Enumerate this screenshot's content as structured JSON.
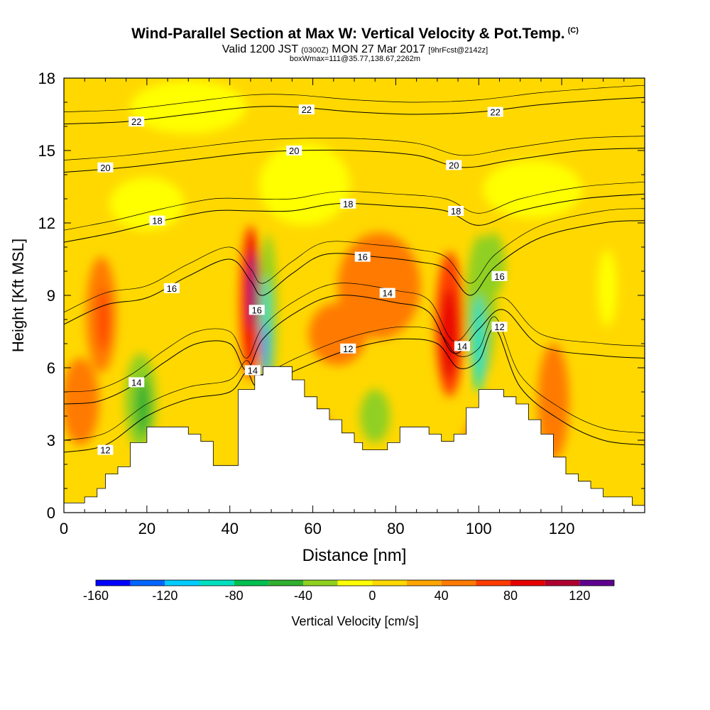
{
  "header": {
    "title": "Wind-Parallel Section at Max W: Vertical Velocity & Pot.Temp.",
    "copyright": "(C)",
    "valid_prefix": "Valid 1200 JST",
    "valid_utc": "(0300Z)",
    "valid_date": "MON 27 Mar 2017",
    "forecast": "[9hrFcst@2142z]",
    "box_info": "boxWmax=111@35.77,138.67,2262m"
  },
  "chart_data": {
    "type": "heatmap",
    "title": "Wind-Parallel Section at Max W: Vertical Velocity & Pot.Temp.",
    "xlabel": "Distance [nm]",
    "ylabel": "Height [Kft MSL]",
    "xlim": [
      0,
      140
    ],
    "ylim": [
      0,
      18
    ],
    "xticks": [
      0,
      20,
      40,
      60,
      80,
      100,
      120
    ],
    "yticks": [
      0,
      3,
      6,
      9,
      12,
      15,
      18
    ],
    "colorbar": {
      "label": "Vertical Velocity [cm/s]",
      "ticks": [
        -160,
        -120,
        -80,
        -40,
        0,
        40,
        80,
        120
      ],
      "levels": [
        -160,
        -140,
        -120,
        -100,
        -80,
        -60,
        -40,
        -20,
        0,
        20,
        40,
        60,
        80,
        100,
        120,
        140
      ],
      "colors": [
        "#0000ff",
        "#0066ff",
        "#00ccff",
        "#00e0c0",
        "#00c050",
        "#30b030",
        "#90d020",
        "#ffff00",
        "#ffd800",
        "#ffa500",
        "#ff7a00",
        "#ff3c00",
        "#e80000",
        "#b00030",
        "#600090"
      ]
    },
    "terrain": [
      [
        0,
        0.4
      ],
      [
        5,
        0.4
      ],
      [
        5,
        0.65
      ],
      [
        8,
        0.65
      ],
      [
        8,
        1.0
      ],
      [
        10,
        1.0
      ],
      [
        10,
        1.6
      ],
      [
        13,
        1.6
      ],
      [
        13,
        1.9
      ],
      [
        16,
        1.9
      ],
      [
        16,
        2.9
      ],
      [
        20,
        2.9
      ],
      [
        20,
        3.55
      ],
      [
        30,
        3.55
      ],
      [
        30,
        3.25
      ],
      [
        33,
        3.25
      ],
      [
        33,
        2.95
      ],
      [
        36,
        2.95
      ],
      [
        36,
        1.95
      ],
      [
        42,
        1.95
      ],
      [
        42,
        5.1
      ],
      [
        46,
        5.1
      ],
      [
        46,
        5.7
      ],
      [
        48,
        5.7
      ],
      [
        48,
        6.05
      ],
      [
        55,
        6.05
      ],
      [
        55,
        5.5
      ],
      [
        58,
        5.5
      ],
      [
        58,
        4.8
      ],
      [
        61,
        4.8
      ],
      [
        61,
        4.3
      ],
      [
        64,
        4.3
      ],
      [
        64,
        3.85
      ],
      [
        67,
        3.85
      ],
      [
        67,
        3.3
      ],
      [
        70,
        3.3
      ],
      [
        70,
        2.9
      ],
      [
        72,
        2.9
      ],
      [
        72,
        2.6
      ],
      [
        78,
        2.6
      ],
      [
        78,
        2.9
      ],
      [
        81,
        2.9
      ],
      [
        81,
        3.55
      ],
      [
        88,
        3.55
      ],
      [
        88,
        3.25
      ],
      [
        91,
        3.25
      ],
      [
        91,
        2.95
      ],
      [
        94,
        2.95
      ],
      [
        94,
        3.25
      ],
      [
        97,
        3.25
      ],
      [
        97,
        4.35
      ],
      [
        100,
        4.35
      ],
      [
        100,
        5.1
      ],
      [
        106,
        5.1
      ],
      [
        106,
        4.8
      ],
      [
        109,
        4.8
      ],
      [
        109,
        4.5
      ],
      [
        112,
        4.5
      ],
      [
        112,
        3.85
      ],
      [
        115,
        3.85
      ],
      [
        115,
        3.25
      ],
      [
        118,
        3.25
      ],
      [
        118,
        2.3
      ],
      [
        121,
        2.3
      ],
      [
        121,
        1.6
      ],
      [
        124,
        1.6
      ],
      [
        124,
        1.3
      ],
      [
        127,
        1.3
      ],
      [
        127,
        1.0
      ],
      [
        130,
        1.0
      ],
      [
        130,
        0.65
      ],
      [
        137,
        0.65
      ],
      [
        137,
        0.3
      ],
      [
        140,
        0.3
      ]
    ],
    "vv_blobs": [
      {
        "x": 45,
        "y": 8.7,
        "rx": 2.6,
        "ry": 3.2,
        "value": 60
      },
      {
        "x": 45.4,
        "y": 8.9,
        "rx": 1.5,
        "ry": 2.7,
        "value": 90
      },
      {
        "x": 45.6,
        "y": 9.2,
        "rx": 0.8,
        "ry": 1.6,
        "value": 130
      },
      {
        "x": 49.2,
        "y": 8.2,
        "rx": 2.2,
        "ry": 3.3,
        "value": -40
      },
      {
        "x": 48.6,
        "y": 7.6,
        "rx": 1.1,
        "ry": 2.2,
        "value": -90
      },
      {
        "x": 48.3,
        "y": 6.8,
        "rx": 0.6,
        "ry": 1.1,
        "value": -130
      },
      {
        "x": 93,
        "y": 7.8,
        "rx": 3.4,
        "ry": 3.0,
        "value": 60
      },
      {
        "x": 92.8,
        "y": 7.4,
        "rx": 2.1,
        "ry": 1.9,
        "value": 90
      },
      {
        "x": 100.5,
        "y": 8.5,
        "rx": 3.6,
        "ry": 3.0,
        "value": -40
      },
      {
        "x": 100,
        "y": 7.0,
        "rx": 1.5,
        "ry": 2.0,
        "value": -90
      },
      {
        "x": 103.5,
        "y": 10.3,
        "rx": 2.8,
        "ry": 1.3,
        "value": -40
      },
      {
        "x": 18.5,
        "y": 4.6,
        "rx": 3.8,
        "ry": 2.0,
        "value": -40
      },
      {
        "x": 19,
        "y": 4.4,
        "rx": 1.7,
        "ry": 1.2,
        "value": -60
      },
      {
        "x": 9,
        "y": 8.2,
        "rx": 3.6,
        "ry": 2.4,
        "value": 40
      },
      {
        "x": 9.5,
        "y": 8.0,
        "rx": 1.3,
        "ry": 1.3,
        "value": 60
      },
      {
        "x": 4,
        "y": 4.6,
        "rx": 4.5,
        "ry": 1.8,
        "value": 40
      },
      {
        "x": 76,
        "y": 9.4,
        "rx": 10,
        "ry": 2.2,
        "value": 40
      },
      {
        "x": 66,
        "y": 7.4,
        "rx": 7,
        "ry": 1.3,
        "value": 40
      },
      {
        "x": 75,
        "y": 4.0,
        "rx": 3.6,
        "ry": 1.1,
        "value": -40
      },
      {
        "x": 118.5,
        "y": 4.1,
        "rx": 3.0,
        "ry": 1.5,
        "value": 60
      },
      {
        "x": 118,
        "y": 4.6,
        "rx": 3.8,
        "ry": 2.4,
        "value": 40
      },
      {
        "x": 101,
        "y": 2.8,
        "rx": 4.5,
        "ry": 1.3,
        "value": 40
      },
      {
        "x": 60,
        "y": 3.1,
        "rx": 5,
        "ry": 1.1,
        "value": 40
      },
      {
        "x": 58,
        "y": 13.6,
        "rx": 11,
        "ry": 1.7,
        "value": -20
      },
      {
        "x": 30,
        "y": 16.8,
        "rx": 14,
        "ry": 1.1,
        "value": -20
      },
      {
        "x": 113,
        "y": 13.4,
        "rx": 12,
        "ry": 1.2,
        "value": -20
      },
      {
        "x": 131,
        "y": 9.3,
        "rx": 2.3,
        "ry": 1.6,
        "value": -20
      },
      {
        "x": 20,
        "y": 12.8,
        "rx": 9,
        "ry": 1.1,
        "value": -20
      }
    ],
    "isentropes": [
      {
        "value": 12,
        "points": [
          [
            0,
            2.5
          ],
          [
            10,
            2.8
          ],
          [
            20,
            4.0
          ],
          [
            30,
            4.7
          ],
          [
            40,
            5.0
          ],
          [
            44,
            5.8
          ],
          [
            47,
            5.2
          ],
          [
            56,
            5.9
          ],
          [
            66,
            6.6
          ],
          [
            74,
            7.0
          ],
          [
            82,
            7.2
          ],
          [
            90,
            7.0
          ],
          [
            95,
            6.0
          ],
          [
            100,
            6.3
          ],
          [
            104,
            7.6
          ],
          [
            110,
            5.2
          ],
          [
            120,
            3.8
          ],
          [
            130,
            3.0
          ],
          [
            140,
            2.8
          ]
        ]
      },
      {
        "value": 14,
        "points": [
          [
            0,
            4.5
          ],
          [
            8,
            4.6
          ],
          [
            16,
            5.2
          ],
          [
            24,
            6.2
          ],
          [
            32,
            7.0
          ],
          [
            40,
            7.0
          ],
          [
            44,
            5.9
          ],
          [
            48,
            7.2
          ],
          [
            56,
            8.3
          ],
          [
            66,
            9.0
          ],
          [
            80,
            8.7
          ],
          [
            88,
            8.3
          ],
          [
            94,
            6.6
          ],
          [
            100,
            7.6
          ],
          [
            106,
            8.4
          ],
          [
            115,
            6.9
          ],
          [
            130,
            6.5
          ],
          [
            140,
            6.4
          ]
        ]
      },
      {
        "value": 16,
        "points": [
          [
            0,
            7.8
          ],
          [
            10,
            8.6
          ],
          [
            20,
            8.9
          ],
          [
            30,
            9.8
          ],
          [
            40,
            10.5
          ],
          [
            45,
            9.6
          ],
          [
            48,
            9.0
          ],
          [
            55,
            9.9
          ],
          [
            63,
            10.7
          ],
          [
            75,
            10.6
          ],
          [
            85,
            10.4
          ],
          [
            92,
            10.1
          ],
          [
            98,
            9.0
          ],
          [
            104,
            10.2
          ],
          [
            115,
            11.4
          ],
          [
            130,
            12.0
          ],
          [
            140,
            12.1
          ]
        ]
      },
      {
        "value": 18,
        "points": [
          [
            0,
            11.2
          ],
          [
            12,
            11.6
          ],
          [
            24,
            12.1
          ],
          [
            36,
            12.5
          ],
          [
            45,
            12.5
          ],
          [
            55,
            12.5
          ],
          [
            66,
            12.8
          ],
          [
            80,
            12.7
          ],
          [
            92,
            12.5
          ],
          [
            100,
            11.9
          ],
          [
            110,
            12.5
          ],
          [
            125,
            13.0
          ],
          [
            140,
            13.2
          ]
        ]
      },
      {
        "value": 20,
        "points": [
          [
            0,
            14.1
          ],
          [
            15,
            14.3
          ],
          [
            30,
            14.6
          ],
          [
            45,
            14.9
          ],
          [
            56,
            15.0
          ],
          [
            70,
            15.0
          ],
          [
            85,
            14.8
          ],
          [
            96,
            14.3
          ],
          [
            108,
            14.6
          ],
          [
            125,
            15.0
          ],
          [
            140,
            15.1
          ]
        ]
      },
      {
        "value": 22,
        "points": [
          [
            0,
            16.1
          ],
          [
            15,
            16.2
          ],
          [
            30,
            16.5
          ],
          [
            45,
            16.8
          ],
          [
            56,
            16.8
          ],
          [
            70,
            16.6
          ],
          [
            85,
            16.5
          ],
          [
            100,
            16.6
          ],
          [
            115,
            16.9
          ],
          [
            130,
            17.1
          ],
          [
            140,
            17.2
          ]
        ]
      }
    ],
    "isentrope_labels": [
      {
        "text": "22",
        "x": 17.5,
        "y": 16.2
      },
      {
        "text": "22",
        "x": 58.5,
        "y": 16.7
      },
      {
        "text": "22",
        "x": 104,
        "y": 16.6
      },
      {
        "text": "20",
        "x": 10,
        "y": 14.3
      },
      {
        "text": "20",
        "x": 55.5,
        "y": 15.0
      },
      {
        "text": "20",
        "x": 94,
        "y": 14.4
      },
      {
        "text": "18",
        "x": 22.5,
        "y": 12.1
      },
      {
        "text": "18",
        "x": 68.5,
        "y": 12.8
      },
      {
        "text": "18",
        "x": 94.5,
        "y": 12.5
      },
      {
        "text": "16",
        "x": 26,
        "y": 9.3
      },
      {
        "text": "16",
        "x": 72,
        "y": 10.6
      },
      {
        "text": "16",
        "x": 46.5,
        "y": 8.4
      },
      {
        "text": "16",
        "x": 105,
        "y": 9.8
      },
      {
        "text": "14",
        "x": 17.5,
        "y": 5.4
      },
      {
        "text": "14",
        "x": 45.5,
        "y": 5.9
      },
      {
        "text": "14",
        "x": 78,
        "y": 9.1
      },
      {
        "text": "14",
        "x": 96,
        "y": 6.9
      },
      {
        "text": "12",
        "x": 10,
        "y": 2.6
      },
      {
        "text": "12",
        "x": 68.5,
        "y": 6.8
      },
      {
        "text": "12",
        "x": 105,
        "y": 7.7
      }
    ]
  }
}
